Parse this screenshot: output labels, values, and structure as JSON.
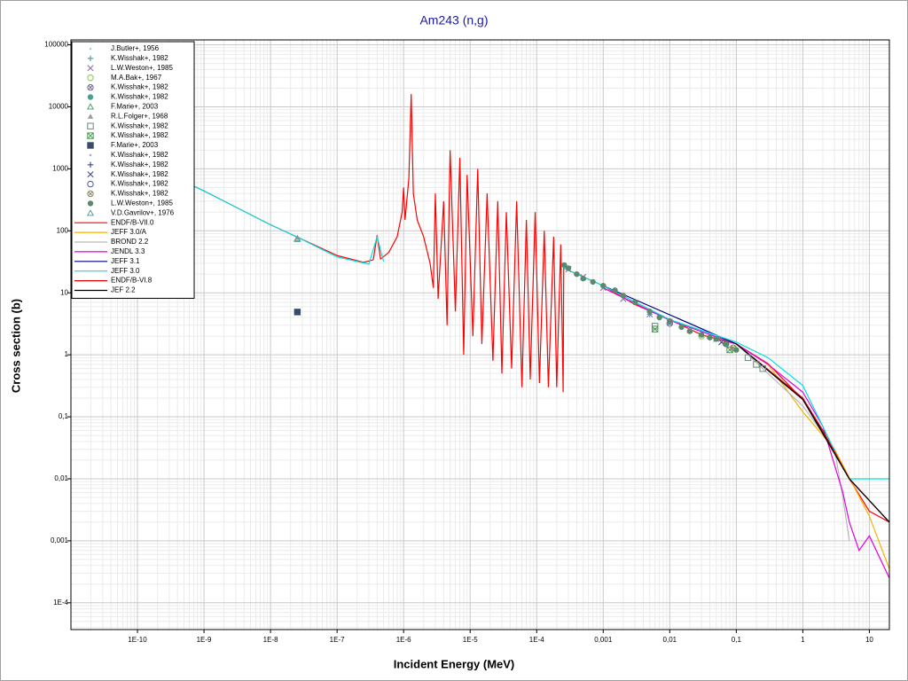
{
  "chart_data": {
    "type": "line",
    "title": "Am243 (n,g)",
    "x_label": "Incident Energy (MeV)",
    "y_label": "Cross section (b)",
    "xlog": true,
    "ylog": true,
    "grid": true,
    "legend": "upper left",
    "xlim": [
      1e-11,
      20
    ],
    "ylim": [
      3.7e-05,
      120000
    ],
    "xticks": [
      {
        "value": 1e-10,
        "label": "1E-10"
      },
      {
        "value": 1e-09,
        "label": "1E-9"
      },
      {
        "value": 1e-08,
        "label": "1E-8"
      },
      {
        "value": 1e-07,
        "label": "1E-7"
      },
      {
        "value": 1e-06,
        "label": "1E-6"
      },
      {
        "value": 1e-05,
        "label": "1E-5"
      },
      {
        "value": 0.0001,
        "label": "1E-4"
      },
      {
        "value": 0.001,
        "label": "0,001"
      },
      {
        "value": 0.01,
        "label": "0,01"
      },
      {
        "value": 0.1,
        "label": "0,1"
      },
      1,
      10
    ],
    "yticks": [
      {
        "value": 0.0001,
        "label": "1E-4"
      },
      {
        "value": 0.001,
        "label": "0,001"
      },
      {
        "value": 0.01,
        "label": "0,01"
      },
      {
        "value": 0.1,
        "label": "0,1"
      },
      1,
      10,
      100,
      1000,
      10000,
      100000
    ],
    "series": [
      {
        "name": "J.Butler+, 1956",
        "color": "#9fd6e0",
        "marker": "dot",
        "x": [
          2.53e-08
        ],
        "values": [
          75
        ]
      },
      {
        "name": "K.Wisshak+, 1982",
        "color": "#5aa0a0",
        "marker": "plus",
        "x": [
          0.005,
          0.02
        ],
        "values": [
          4.5,
          2.4
        ]
      },
      {
        "name": "L.W.Weston+, 1985",
        "color": "#8a6fb0",
        "marker": "cross",
        "x": [
          0.0003,
          0.0005,
          0.001,
          0.002,
          0.005,
          0.01,
          0.02,
          0.05
        ],
        "values": [
          24,
          18,
          12,
          8,
          4.5,
          3.4,
          2.5,
          1.8
        ]
      },
      {
        "name": "M.A.Bak+, 1967",
        "color": "#8bbf5a",
        "marker": "circle",
        "x": [
          0.03
        ],
        "values": [
          2.0
        ]
      },
      {
        "name": "K.Wisshak+, 1982",
        "color": "#6b6b9a",
        "marker": "circle-x",
        "x": [
          0.01
        ],
        "values": [
          3.2
        ]
      },
      {
        "name": "K.Wisshak+, 1982",
        "color": "#4aa090",
        "marker": "filled-circle",
        "x": [
          0.05
        ],
        "values": [
          1.8
        ]
      },
      {
        "name": "F.Marie+, 2003",
        "color": "#5aa070",
        "marker": "triangle",
        "x": [
          2.53e-08
        ],
        "values": [
          75
        ]
      },
      {
        "name": "R.L.Folger+, 1968",
        "color": "#a09aa0",
        "marker": "filled-triangle",
        "x": [
          2.53e-08
        ],
        "values": [
          78
        ]
      },
      {
        "name": "K.Wisshak+, 1982",
        "color": "#6a8a7a",
        "marker": "square",
        "x": [
          0.006,
          0.15,
          0.2,
          0.25
        ],
        "values": [
          2.9,
          0.9,
          0.7,
          0.6
        ]
      },
      {
        "name": "K.Wisshak+, 1982",
        "color": "#4a9a50",
        "marker": "square-x",
        "x": [
          0.006,
          0.08
        ],
        "values": [
          2.6,
          1.2
        ]
      },
      {
        "name": "F.Marie+, 2003",
        "color": "#3a4a6a",
        "marker": "filled-square",
        "x": [
          2.53e-08
        ],
        "values": [
          4.9
        ]
      },
      {
        "name": "K.Wisshak+, 1982",
        "color": "#aaaacc",
        "marker": "dot",
        "x": [
          0.02
        ],
        "values": [
          2.3
        ]
      },
      {
        "name": "K.Wisshak+, 1982",
        "color": "#3a4a9a",
        "marker": "plus",
        "x": [
          0.04
        ],
        "values": [
          1.9
        ]
      },
      {
        "name": "K.Wisshak+, 1982",
        "color": "#4a4a8a",
        "marker": "cross",
        "x": [
          0.06
        ],
        "values": [
          1.6
        ]
      },
      {
        "name": "K.Wisshak+, 1982",
        "color": "#4a5a9a",
        "marker": "circle",
        "x": [
          0.07
        ],
        "values": [
          1.5
        ]
      },
      {
        "name": "K.Wisshak+, 1982",
        "color": "#8a8a5a",
        "marker": "circle-x",
        "x": [
          0.09
        ],
        "values": [
          1.3
        ]
      },
      {
        "name": "L.W.Weston+, 1985",
        "color": "#5a8a6a",
        "marker": "filled-circle",
        "x": [
          0.00026,
          0.0003,
          0.0004,
          0.0005,
          0.0007,
          0.001,
          0.0015,
          0.002,
          0.003,
          0.005,
          0.007,
          0.01,
          0.015,
          0.02,
          0.03,
          0.04,
          0.05,
          0.07,
          0.1
        ],
        "values": [
          28,
          25,
          20,
          17,
          15,
          13,
          11,
          9,
          7,
          5,
          4,
          3.5,
          2.8,
          2.4,
          2.1,
          1.9,
          1.8,
          1.5,
          1.2
        ]
      },
      {
        "name": "V.D.Gavrilov+, 1976",
        "color": "#5aa0a0",
        "marker": "triangle",
        "x": [
          2.53e-08
        ],
        "values": [
          73
        ]
      },
      {
        "name": "ENDF/B-VII.0",
        "color": "#ff0000",
        "x": [
          1e-11,
          1e-10,
          1e-09,
          1e-08,
          2.53e-08,
          1e-07,
          2.5e-07,
          3.5e-07,
          4e-07,
          4.5e-07,
          6e-07,
          8e-07,
          9.5e-07,
          1e-06,
          1.05e-06,
          1.2e-06,
          1.3e-06,
          1.4e-06,
          1.6e-06,
          2e-06,
          2.5e-06,
          2.8e-06,
          3e-06,
          3.3e-06,
          4e-06,
          4.5e-06,
          5e-06,
          6e-06,
          7e-06,
          8e-06,
          9e-06,
          1.1e-05,
          1.3e-05,
          1.5e-05,
          1.8e-05,
          2.2e-05,
          2.6e-05,
          3e-05,
          3.5e-05,
          4.2e-05,
          5e-05,
          6e-05,
          7e-05,
          8e-05,
          9.5e-05,
          0.00011,
          0.00013,
          0.00015,
          0.00018,
          0.0002,
          0.00023,
          0.00025,
          0.000255,
          0.001,
          0.003,
          0.01,
          0.03,
          0.1,
          0.3,
          1,
          2,
          5,
          10,
          20
        ],
        "values": [
          4400,
          1390,
          440,
          125,
          79,
          40,
          31,
          34,
          85,
          35,
          45,
          80,
          200,
          500,
          150,
          700,
          16000,
          400,
          150,
          80,
          30,
          12,
          400,
          8,
          300,
          3,
          2000,
          5,
          1500,
          1,
          800,
          2,
          1000,
          1.5,
          400,
          0.8,
          300,
          0.5,
          200,
          0.6,
          300,
          0.3,
          150,
          0.4,
          200,
          0.35,
          100,
          0.3,
          80,
          0.3,
          60,
          0.25,
          25,
          13,
          6.5,
          3.7,
          2.1,
          1.5,
          0.72,
          0.19,
          0.06,
          0.01,
          0.003,
          0.002
        ]
      },
      {
        "name": "JEFF 3.0/A",
        "color": "#f0b400",
        "x": [
          0.1,
          0.3,
          1,
          3,
          10,
          20
        ],
        "values": [
          1.5,
          0.7,
          0.12,
          0.03,
          0.0025,
          0.00035
        ]
      },
      {
        "name": "BROND 2.2",
        "color": "#b8b8b8",
        "x": [
          0.1,
          1,
          3,
          4,
          5
        ],
        "values": [
          1.5,
          0.15,
          0.03,
          0.005,
          0.001
        ]
      },
      {
        "name": "JENDL 3.3",
        "color": "#e000e0",
        "x": [
          0.001,
          0.01,
          0.1,
          0.3,
          1,
          2,
          4,
          5,
          7,
          10,
          20
        ],
        "values": [
          12,
          3.6,
          1.5,
          0.7,
          0.25,
          0.07,
          0.006,
          0.002,
          0.0007,
          0.0012,
          0.00025
        ]
      },
      {
        "name": "JEFF 3.1",
        "color": "#000080",
        "x": [
          0.001,
          0.1,
          1,
          5,
          20
        ],
        "values": [
          13,
          1.5,
          0.2,
          0.01,
          0.002
        ]
      },
      {
        "name": "JEFF 3.0",
        "color": "#00e0e0",
        "x": [
          1e-11,
          1e-09,
          1e-08,
          2.53e-08,
          1e-07,
          3e-07,
          4e-07,
          5e-07,
          null,
          0.000255,
          0.001,
          0.01,
          0.1,
          0.3,
          1,
          2,
          4,
          5,
          20
        ],
        "values": [
          4400,
          440,
          125,
          79,
          38,
          29,
          80,
          32,
          null,
          25,
          13,
          3.7,
          1.6,
          0.9,
          0.32,
          0.07,
          0.015,
          0.01,
          0.01
        ]
      },
      {
        "name": "ENDF/B-VI.8",
        "color": "#e00000",
        "x": [
          0.1,
          1,
          2,
          5,
          20
        ],
        "values": [
          1.5,
          0.2,
          0.06,
          0.01,
          0.002
        ]
      },
      {
        "name": "JEF 2.2",
        "color": "#000000",
        "x": [
          0.1,
          1,
          5,
          20
        ],
        "values": [
          1.5,
          0.19,
          0.01,
          0.002
        ]
      }
    ]
  }
}
